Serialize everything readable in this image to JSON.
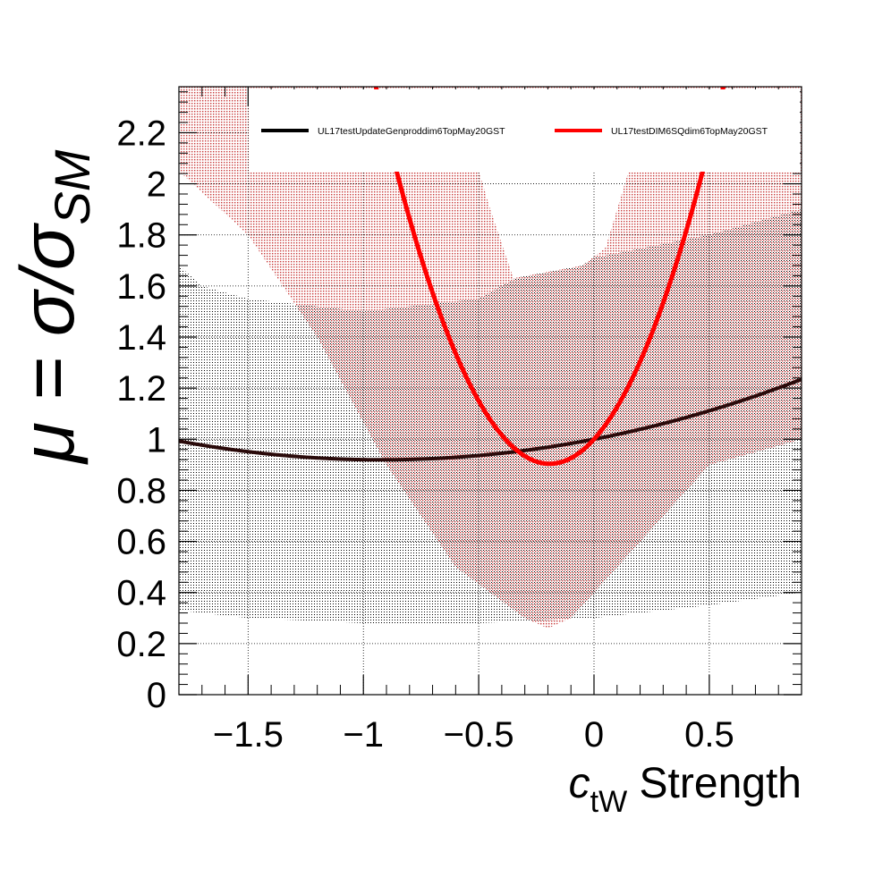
{
  "chart_data": {
    "type": "line",
    "xlabel": {
      "symbol": "c",
      "subscript": "tW",
      "suffix": " Strength"
    },
    "ylabel": {
      "lhs": "μ = σ/σ",
      "subscript": "SM"
    },
    "xlim": [
      -1.8,
      0.9
    ],
    "ylim": [
      0,
      2.38
    ],
    "xticks": [
      {
        "value": -1.5,
        "label": "−1.5"
      },
      {
        "value": -1.0,
        "label": "−1"
      },
      {
        "value": -0.5,
        "label": "−0.5"
      },
      {
        "value": 0.0,
        "label": "0"
      },
      {
        "value": 0.5,
        "label": "0.5"
      }
    ],
    "yticks": [
      {
        "value": 0,
        "label": "0"
      },
      {
        "value": 0.2,
        "label": "0.2"
      },
      {
        "value": 0.4,
        "label": "0.4"
      },
      {
        "value": 0.6,
        "label": "0.6"
      },
      {
        "value": 0.8,
        "label": "0.8"
      },
      {
        "value": 1.0,
        "label": "1"
      },
      {
        "value": 1.2,
        "label": "1.2"
      },
      {
        "value": 1.4,
        "label": "1.4"
      },
      {
        "value": 1.6,
        "label": "1.6"
      },
      {
        "value": 1.8,
        "label": "1.8"
      },
      {
        "value": 2.0,
        "label": "2"
      },
      {
        "value": 2.2,
        "label": "2.2"
      }
    ],
    "grid": true,
    "legend_position": "top",
    "series": [
      {
        "name": "UL17testUpdateGenproddim6TopMay20GST",
        "color": "#000000",
        "band_color": "#000000",
        "quadratic": {
          "a": 0.095,
          "b": 0.175,
          "c": 1.0
        },
        "band_upper": [
          [
            -1.8,
            1.68
          ],
          [
            -1.7,
            1.6
          ],
          [
            -1.5,
            1.55
          ],
          [
            -1.0,
            1.5
          ],
          [
            -0.5,
            1.55
          ],
          [
            -0.4,
            1.6
          ],
          [
            -0.3,
            1.65
          ],
          [
            0.0,
            1.71
          ],
          [
            0.5,
            1.8
          ],
          [
            0.9,
            1.9
          ]
        ],
        "band_lower": [
          [
            -1.8,
            0.33
          ],
          [
            -1.5,
            0.3
          ],
          [
            -1.0,
            0.28
          ],
          [
            -0.5,
            0.28
          ],
          [
            0.0,
            0.3
          ],
          [
            0.5,
            0.35
          ],
          [
            0.9,
            0.4
          ]
        ]
      },
      {
        "name": "UL17testDIM6SQdim6TopMay20GST",
        "color": "#ff0000",
        "band_color": "#d04040",
        "quadratic": {
          "a": 2.6,
          "b": 1.0,
          "c": 1.0
        },
        "band_upper": [
          [
            -1.8,
            2.38
          ],
          [
            -0.95,
            2.38
          ],
          [
            -0.9,
            2.38
          ],
          [
            -0.5,
            2.38
          ],
          [
            -0.4,
            2.38
          ],
          [
            0.15,
            2.38
          ],
          [
            0.9,
            2.38
          ]
        ],
        "band_lower": [
          [
            -1.8,
            2.05
          ],
          [
            -1.5,
            1.8
          ],
          [
            -1.2,
            1.4
          ],
          [
            -0.9,
            0.9
          ],
          [
            -0.6,
            0.5
          ],
          [
            -0.3,
            0.3
          ],
          [
            -0.2,
            0.26
          ],
          [
            -0.1,
            0.3
          ],
          [
            0.2,
            0.6
          ],
          [
            0.5,
            0.9
          ],
          [
            0.9,
            1.0
          ]
        ],
        "gap": [
          [
            -0.5,
            2.05
          ],
          [
            -0.45,
            1.9
          ],
          [
            -0.35,
            1.63
          ],
          [
            -0.05,
            1.68
          ],
          [
            0.05,
            1.75
          ],
          [
            0.15,
            2.05
          ]
        ]
      }
    ]
  }
}
